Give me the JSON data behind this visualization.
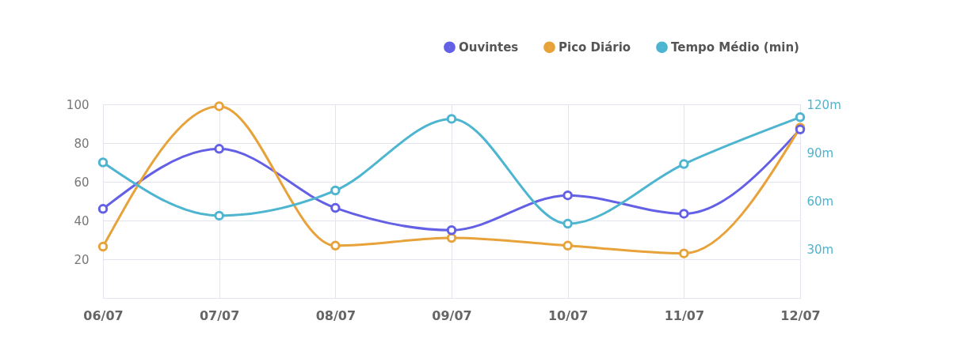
{
  "chart_data": {
    "type": "line",
    "categories": [
      "06/07",
      "07/07",
      "08/07",
      "09/07",
      "10/07",
      "11/07",
      "12/07"
    ],
    "series": [
      {
        "name": "Ouvintes",
        "color": "#6360e6",
        "values": [
          46,
          77,
          46.5,
          35,
          53,
          43.5,
          87
        ]
      },
      {
        "name": "Pico Diário",
        "color": "#e8a23a",
        "values": [
          26.5,
          99,
          27,
          31,
          27,
          23,
          88
        ]
      },
      {
        "name": "Tempo Médio (min)",
        "color": "#4db5d0",
        "axis": "y2",
        "values": [
          84,
          51,
          66.6,
          111,
          46,
          83,
          112
        ]
      }
    ],
    "ylim": [
      0,
      100
    ],
    "yticks": [
      20,
      40,
      60,
      80,
      100
    ],
    "y2lim": [
      0,
      120
    ],
    "y2ticks": [
      {
        "value": 30,
        "label": "30m"
      },
      {
        "value": 60,
        "label": "60m"
      },
      {
        "value": 90,
        "label": "90m"
      },
      {
        "value": 120,
        "label": "120m"
      }
    ],
    "grid": true,
    "legend": "top right",
    "marker": "circle",
    "line_style": "solid"
  }
}
